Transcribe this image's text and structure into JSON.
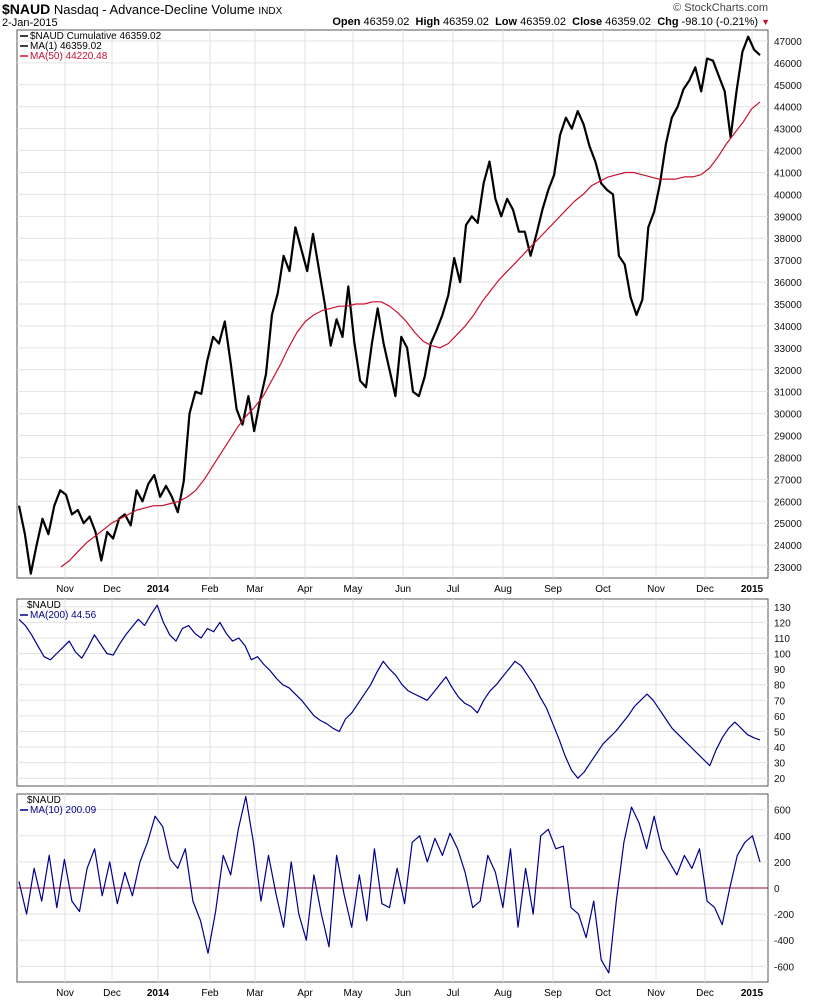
{
  "header": {
    "symbol": "$NAUD",
    "name": "Nasdaq - Advance-Decline Volume",
    "type": "INDX",
    "date": "2-Jan-2015",
    "open_label": "Open",
    "open": "46359.02",
    "high_label": "High",
    "high": "46359.02",
    "low_label": "Low",
    "low": "46359.02",
    "close_label": "Close",
    "close": "46359.02",
    "chg_label": "Chg",
    "chg": "-98.10 (-0.21%)",
    "brand": "© StockCharts.com",
    "chg_color": "#c8102e"
  },
  "colors": {
    "price": "#000000",
    "ma50": "#c8102e",
    "panel": "#00008b",
    "zero": "#8b0a3a",
    "grid": "#e2e2e2"
  },
  "chart_data": [
    {
      "type": "line",
      "title": "",
      "legend": [
        "$NAUD Cumulative 46359.02",
        "MA(1) 46359.02",
        "MA(50) 44220.48"
      ],
      "legend_position": "top-left",
      "x_ticks": [
        "Nov",
        "Dec",
        "2014",
        "Feb",
        "Mar",
        "Apr",
        "May",
        "Jun",
        "Jul",
        "Aug",
        "Sep",
        "Oct",
        "Nov",
        "Dec",
        "2015"
      ],
      "ylim": [
        22500,
        47500
      ],
      "y_ticks": [
        23000,
        24000,
        25000,
        26000,
        27000,
        28000,
        29000,
        30000,
        31000,
        32000,
        33000,
        34000,
        35000,
        36000,
        37000,
        38000,
        39000,
        40000,
        41000,
        42000,
        43000,
        44000,
        45000,
        46000,
        47000
      ],
      "grid": true,
      "series": [
        {
          "name": "MA(1) 46359.02",
          "values": [
            25800,
            24500,
            22700,
            24000,
            25200,
            24500,
            25800,
            26500,
            26300,
            25400,
            25600,
            25000,
            25300,
            24600,
            23300,
            24600,
            24300,
            25200,
            25400,
            24900,
            26500,
            26000,
            26800,
            27200,
            26200,
            26700,
            26200,
            25500,
            26900,
            30000,
            31000,
            30900,
            32400,
            33500,
            33200,
            34200,
            32300,
            30200,
            29500,
            30800,
            29200,
            30600,
            31800,
            34500,
            35500,
            37200,
            36500,
            38500,
            37500,
            36500,
            38200,
            36600,
            35000,
            33100,
            34300,
            33500,
            35800,
            33300,
            31500,
            31200,
            33200,
            34800,
            33200,
            32000,
            30800,
            33500,
            33000,
            31000,
            30800,
            31700,
            33200,
            33800,
            34500,
            35400,
            37100,
            36000,
            38600,
            39000,
            38700,
            40500,
            41500,
            39800,
            39000,
            39800,
            39300,
            38300,
            38300,
            37200,
            38200,
            39300,
            40200,
            40900,
            42700,
            43500,
            43000,
            43800,
            43200,
            42200,
            41500,
            40500,
            40200,
            40000,
            37200,
            36800,
            35300,
            34500,
            35200,
            38500,
            39200,
            40500,
            42300,
            43500,
            44000,
            44800,
            45200,
            45800,
            44700,
            46200,
            46100,
            45400,
            44700,
            42600,
            44700,
            46500,
            47200,
            46600,
            46350
          ]
        },
        {
          "name": "MA(50) 44220.48",
          "values": [
            null,
            null,
            null,
            null,
            null,
            23000,
            23300,
            23700,
            24100,
            24400,
            24700,
            25000,
            25200,
            25400,
            25600,
            25700,
            25800,
            25800,
            25900,
            26000,
            26200,
            26500,
            27000,
            27600,
            28200,
            28800,
            29400,
            29900,
            30300,
            30800,
            31500,
            32200,
            33000,
            33700,
            34200,
            34500,
            34700,
            34800,
            34900,
            34900,
            35000,
            35000,
            35100,
            35100,
            34900,
            34600,
            34200,
            33700,
            33300,
            33100,
            33000,
            33200,
            33600,
            34000,
            34500,
            35100,
            35600,
            36100,
            36500,
            36900,
            37300,
            37700,
            38100,
            38500,
            38900,
            39300,
            39700,
            40000,
            40400,
            40600,
            40800,
            40900,
            41000,
            41000,
            40900,
            40800,
            40700,
            40700,
            40700,
            40800,
            40800,
            40900,
            41200,
            41700,
            42300,
            42800,
            43300,
            43900,
            44220
          ]
        }
      ]
    },
    {
      "type": "line",
      "title": "",
      "legend": [
        "$NAUD",
        "MA(200) 44.56"
      ],
      "legend_position": "top-left",
      "ylim": [
        15,
        135
      ],
      "y_ticks": [
        20,
        30,
        40,
        50,
        60,
        70,
        80,
        90,
        100,
        110,
        120,
        130
      ],
      "grid": true,
      "series": [
        {
          "name": "MA(200) 44.56",
          "values": [
            122,
            118,
            112,
            105,
            98,
            96,
            100,
            104,
            108,
            101,
            97,
            104,
            112,
            106,
            100,
            99,
            106,
            112,
            117,
            122,
            118,
            125,
            131,
            120,
            112,
            108,
            116,
            118,
            113,
            110,
            116,
            114,
            120,
            113,
            108,
            110,
            105,
            96,
            98,
            93,
            89,
            84,
            80,
            78,
            74,
            70,
            65,
            60,
            57,
            55,
            52,
            50,
            58,
            62,
            68,
            74,
            80,
            88,
            95,
            90,
            86,
            80,
            76,
            74,
            72,
            70,
            75,
            80,
            85,
            78,
            72,
            68,
            66,
            62,
            70,
            76,
            80,
            85,
            90,
            95,
            92,
            86,
            80,
            72,
            65,
            55,
            45,
            34,
            25,
            20,
            24,
            30,
            36,
            42,
            46,
            50,
            55,
            60,
            66,
            70,
            74,
            70,
            64,
            58,
            52,
            48,
            44,
            40,
            36,
            32,
            28,
            38,
            46,
            52,
            56,
            52,
            48,
            46,
            44.56
          ]
        }
      ]
    },
    {
      "type": "line",
      "title": "",
      "legend": [
        "$NAUD",
        "MA(10) 200.09"
      ],
      "legend_position": "top-left",
      "ylim": [
        -720,
        720
      ],
      "y_ticks": [
        600,
        400,
        200,
        0,
        -200,
        -400,
        -600
      ],
      "grid": true,
      "reference_line": 0,
      "x_ticks": [
        "Nov",
        "Dec",
        "2014",
        "Feb",
        "Mar",
        "Apr",
        "May",
        "Jun",
        "Jul",
        "Aug",
        "Sep",
        "Oct",
        "Nov",
        "Dec",
        "2015"
      ],
      "series": [
        {
          "name": "MA(10) 200.09",
          "values": [
            50,
            -200,
            150,
            -100,
            250,
            -150,
            220,
            -100,
            -180,
            150,
            300,
            -60,
            200,
            -120,
            120,
            -60,
            200,
            350,
            550,
            470,
            220,
            150,
            300,
            -100,
            -250,
            -500,
            -180,
            250,
            100,
            450,
            700,
            350,
            -100,
            250,
            -50,
            -300,
            200,
            -200,
            -400,
            100,
            -200,
            -450,
            250,
            -50,
            -300,
            100,
            -250,
            300,
            -120,
            -150,
            150,
            -120,
            350,
            400,
            200,
            380,
            250,
            420,
            300,
            120,
            -150,
            -100,
            250,
            120,
            -150,
            300,
            -300,
            150,
            -200,
            400,
            450,
            300,
            320,
            -150,
            -200,
            -380,
            -100,
            -550,
            -650,
            -100,
            350,
            620,
            500,
            300,
            550,
            300,
            200,
            100,
            250,
            150,
            300,
            -100,
            -150,
            -280,
            0,
            250,
            350,
            400,
            200.09
          ]
        }
      ]
    }
  ]
}
